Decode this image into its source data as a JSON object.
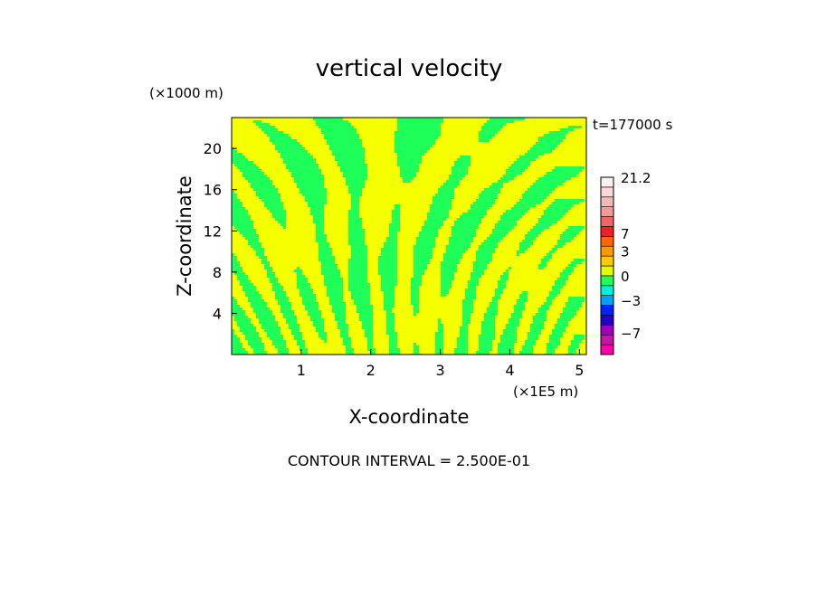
{
  "chart_data": {
    "type": "heatmap",
    "title": "vertical velocity",
    "xlabel": "X-coordinate",
    "ylabel": "Z-coordinate",
    "x_unit": "(×1E5 m)",
    "y_unit": "(×1000 m)",
    "time_label": "t=177000 s",
    "footer": "CONTOUR INTERVAL = 2.500E-01",
    "xlim": [
      0,
      5.1
    ],
    "ylim": [
      0,
      23
    ],
    "x_ticks": [
      1,
      2,
      3,
      4,
      5
    ],
    "y_ticks": [
      4,
      8,
      12,
      16,
      20
    ],
    "field_colors": {
      "positive": "#f6ff00",
      "negative": "#1fff5a"
    },
    "colorbar": {
      "bands": [
        {
          "color": "#ff00aa"
        },
        {
          "color": "#cc11aa"
        },
        {
          "color": "#a000bb"
        },
        {
          "color": "#2200cc"
        },
        {
          "color": "#0022ff"
        },
        {
          "color": "#00a0ff"
        },
        {
          "color": "#00eedd"
        },
        {
          "color": "#22ff55"
        },
        {
          "color": "#ddff00"
        },
        {
          "color": "#ffcc00"
        },
        {
          "color": "#ff9900"
        },
        {
          "color": "#ff6600"
        },
        {
          "color": "#ee2222"
        },
        {
          "color": "#ee6666"
        },
        {
          "color": "#f09a9a"
        },
        {
          "color": "#f4b8b8"
        },
        {
          "color": "#fad8d8"
        },
        {
          "color": "#fff0f0"
        }
      ],
      "labels": [
        {
          "text": "21.2",
          "band": 18
        },
        {
          "text": "7",
          "band": 12.3
        },
        {
          "text": "3",
          "band": 10.5
        },
        {
          "text": "0",
          "band": 8
        },
        {
          "text": "−3",
          "band": 5.5
        },
        {
          "text": "−7",
          "band": 2.2
        }
      ]
    }
  }
}
